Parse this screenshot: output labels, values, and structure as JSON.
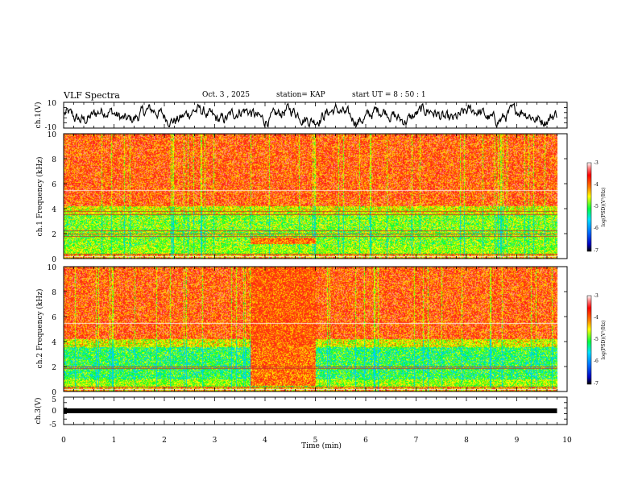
{
  "header": {
    "title": "VLF Spectra",
    "date": "Oct. 3 , 2025",
    "station": "station= KAP",
    "start": "start UT = 8 : 50 : 1"
  },
  "colors": {
    "red": "#ff2020",
    "yellow": "#ffff00",
    "green": "#00ff40",
    "cyan": "#00e0ff",
    "white": "#ffffff",
    "trace": "#000000"
  },
  "chart_data": [
    {
      "type": "line",
      "name": "ch1-waveform",
      "ylabel": "ch.1(V)",
      "ylim": [
        -10,
        10
      ],
      "yticks": [
        "10",
        "-10"
      ],
      "x_range_min": [
        0,
        9.8
      ],
      "description_values": "broadband noise waveform, amplitude mostly within -5..5 V"
    },
    {
      "type": "heatmap",
      "name": "ch1-spectrogram",
      "ylabel": "ch.1 Frequency (kHz)",
      "ylim": [
        0,
        10
      ],
      "yticks": [
        "0",
        "2",
        "4",
        "6",
        "8",
        "10"
      ],
      "x_range_min": [
        0,
        9.8
      ],
      "bands_khz": {
        "low_band": [
          1,
          3.8
        ],
        "enhanced_interval_min": [
          3.7,
          5.0
        ],
        "enhanced_interval_khz": [
          1.2,
          1.7
        ]
      },
      "colorbar": {
        "label": "log(PSD)(V²/Hz)",
        "ticks": [
          "-3",
          "-4",
          "-5",
          "-6",
          "-7"
        ],
        "range": [
          -7,
          -3
        ]
      }
    },
    {
      "type": "heatmap",
      "name": "ch2-spectrogram",
      "ylabel": "ch.2 Frequency (kHz)",
      "ylim": [
        0,
        10
      ],
      "yticks": [
        "0",
        "2",
        "4",
        "6",
        "8",
        "10"
      ],
      "x_range_min": [
        0,
        9.8
      ],
      "bands_khz": {
        "low_band": [
          1,
          3.8
        ],
        "enhanced_interval_min": [
          3.7,
          5.0
        ],
        "enhanced_interval_khz": [
          0.5,
          3.7
        ]
      },
      "colorbar": {
        "label": "log(PSD)(V²/Hz)",
        "ticks": [
          "-3",
          "-4",
          "-5",
          "-6",
          "-7"
        ],
        "range": [
          -7,
          -3
        ]
      }
    },
    {
      "type": "line",
      "name": "ch3-waveform",
      "ylabel": "ch.3(V)",
      "ylim": [
        -5,
        5
      ],
      "yticks": [
        "5",
        "0",
        "-5"
      ],
      "x_range_min": [
        0,
        9.8
      ],
      "level_v": -0.5
    }
  ],
  "xaxis": {
    "label": "Time (min)",
    "xlim": [
      0,
      10
    ],
    "ticks": [
      "0",
      "1",
      "2",
      "3",
      "4",
      "5",
      "6",
      "7",
      "8",
      "9",
      "10"
    ]
  }
}
